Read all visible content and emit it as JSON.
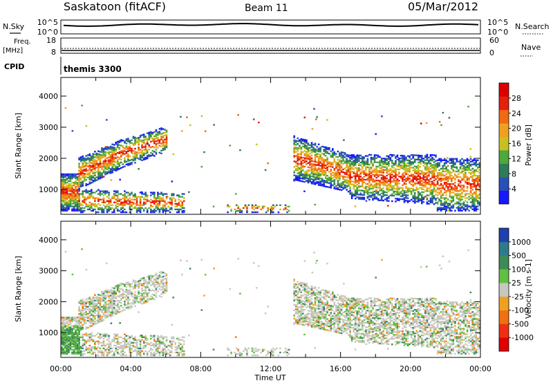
{
  "header": {
    "station": "Saskatoon (fitACF)",
    "beam": "Beam 11",
    "date": "05/Mar/2012",
    "cpid_label": "CPID",
    "cpid_value": "themis 3300"
  },
  "top_panels": {
    "nsky_label": "N.Sky",
    "nsearch_label": "N.Search",
    "nsky_ticks": [
      "10^5",
      "10^0"
    ],
    "nsearch_ticks": [
      "10^5",
      "10^0"
    ],
    "freq_label_1": "Freq.",
    "freq_label_2": "[MHz]",
    "freq_ticks": [
      "18",
      "8"
    ],
    "nave_label": "Nave",
    "nave_ticks": [
      "60",
      "0"
    ]
  },
  "chart_data": [
    {
      "type": "heatmap",
      "title": "",
      "xlabel": "",
      "ylabel": "Slant Range [km]",
      "xlim_hours": [
        0,
        24
      ],
      "ylim_km": [
        200,
        4600
      ],
      "x_tick_labels": [
        "00:00",
        "04:00",
        "08:00",
        "12:00",
        "16:00",
        "20:00",
        "00:00"
      ],
      "y_ticks": [
        1000,
        2000,
        3000,
        4000
      ],
      "colorbar": {
        "label": "Power [dB]",
        "ticks": [
          "4",
          "8",
          "12",
          "16",
          "20",
          "24",
          "28"
        ],
        "colors": [
          "#1818ff",
          "#2850b8",
          "#2f7a5a",
          "#4ea83a",
          "#c8c020",
          "#f0a020",
          "#f06a10",
          "#e52010",
          "#dd0000"
        ]
      }
    },
    {
      "type": "heatmap",
      "title": "",
      "xlabel": "Time UT",
      "ylabel": "Slant Range [km]",
      "xlim_hours": [
        0,
        24
      ],
      "ylim_km": [
        200,
        4600
      ],
      "x_tick_labels": [
        "00:00",
        "04:00",
        "08:00",
        "12:00",
        "16:00",
        "20:00",
        "00:00"
      ],
      "y_ticks": [
        1000,
        2000,
        3000,
        4000
      ],
      "colorbar": {
        "label": "Velocity [m s-1]",
        "ticks": [
          "1000",
          "500",
          "100",
          "25",
          "-25",
          "-100",
          "-500",
          "-1000"
        ],
        "colors": [
          "#2040b0",
          "#2e7a8a",
          "#3f8a55",
          "#60c040",
          "#c8c8c0",
          "#f0a020",
          "#f07010",
          "#ee3010",
          "#e00000"
        ]
      }
    }
  ]
}
